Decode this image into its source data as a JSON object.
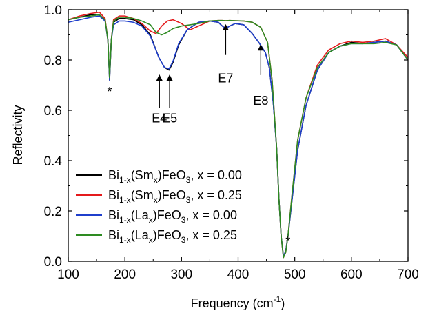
{
  "chart_data": {
    "type": "line",
    "title": "",
    "xlabel": "Frequency (cm⁻¹)",
    "xlabel_parts": {
      "text": "Frequency (cm",
      "sup": "-1",
      "close": ")"
    },
    "ylabel": "Reflectivity",
    "xlim": [
      100,
      700
    ],
    "ylim": [
      0.0,
      1.0
    ],
    "xticks": [
      100,
      200,
      300,
      400,
      500,
      600,
      700
    ],
    "xtick_labels": [
      "100",
      "200",
      "300",
      "400",
      "500",
      "600",
      "700"
    ],
    "yticks": [
      0.0,
      0.2,
      0.4,
      0.6,
      0.8,
      1.0
    ],
    "ytick_labels": [
      "0.0",
      "0.2",
      "0.4",
      "0.6",
      "0.8",
      "1.0"
    ],
    "grid": false,
    "legend_position": "bottom-left",
    "series": [
      {
        "name": "Bi1-x(Sm x)FeO3, x = 0.00",
        "legend": {
          "a": "Bi",
          "a_sub": "1-x",
          "b": "(Sm",
          "b_sub": "x",
          "c": ")FeO",
          "c_sub": "3",
          "d": ", x = 0.00"
        },
        "color": "#000000",
        "x": [
          100,
          120,
          140,
          155,
          165,
          170,
          173,
          176,
          180,
          190,
          200,
          215,
          230,
          245,
          260,
          270,
          278,
          285,
          295,
          310,
          330,
          350,
          365,
          372,
          378,
          385,
          395,
          410,
          425,
          438,
          448,
          455,
          462,
          468,
          472,
          476,
          480,
          484,
          488,
          495,
          505,
          520,
          540,
          560,
          580,
          600,
          620,
          640,
          660,
          680,
          700
        ],
        "y": [
          0.96,
          0.97,
          0.98,
          0.98,
          0.96,
          0.88,
          0.72,
          0.88,
          0.95,
          0.965,
          0.965,
          0.96,
          0.94,
          0.9,
          0.81,
          0.77,
          0.76,
          0.79,
          0.86,
          0.92,
          0.95,
          0.955,
          0.95,
          0.935,
          0.925,
          0.935,
          0.945,
          0.94,
          0.905,
          0.865,
          0.83,
          0.77,
          0.63,
          0.45,
          0.25,
          0.1,
          0.02,
          0.04,
          0.1,
          0.24,
          0.44,
          0.62,
          0.76,
          0.83,
          0.855,
          0.87,
          0.865,
          0.87,
          0.875,
          0.86,
          0.8
        ]
      },
      {
        "name": "Bi1-x(Sm x)FeO3, x = 0.25",
        "legend": {
          "a": "Bi",
          "a_sub": "1-x",
          "b": "(Sm",
          "b_sub": "x",
          "c": ")FeO",
          "c_sub": "3",
          "d": ", x = 0.25"
        },
        "color": "#e41a1c",
        "x": [
          100,
          120,
          140,
          155,
          165,
          170,
          173,
          176,
          180,
          190,
          200,
          215,
          230,
          245,
          255,
          265,
          275,
          285,
          300,
          315,
          330,
          350,
          365,
          372,
          378,
          385,
          395,
          410,
          425,
          440,
          452,
          460,
          468,
          472,
          476,
          480,
          484,
          488,
          495,
          505,
          520,
          540,
          560,
          580,
          600,
          620,
          640,
          660,
          680,
          700
        ],
        "y": [
          0.96,
          0.975,
          0.985,
          0.99,
          0.965,
          0.88,
          0.73,
          0.88,
          0.96,
          0.975,
          0.975,
          0.965,
          0.945,
          0.915,
          0.905,
          0.935,
          0.955,
          0.96,
          0.945,
          0.92,
          0.935,
          0.955,
          0.957,
          0.957,
          0.956,
          0.957,
          0.956,
          0.955,
          0.95,
          0.93,
          0.87,
          0.72,
          0.45,
          0.25,
          0.1,
          0.015,
          0.035,
          0.1,
          0.26,
          0.48,
          0.65,
          0.78,
          0.84,
          0.865,
          0.875,
          0.87,
          0.875,
          0.885,
          0.86,
          0.81
        ]
      },
      {
        "name": "Bi1-x(La x)FeO3, x = 0.00",
        "legend": {
          "a": "Bi",
          "a_sub": "1-x",
          "b": "(La",
          "b_sub": "x",
          "c": ")FeO",
          "c_sub": "3",
          "d": ", x = 0.00"
        },
        "color": "#1f3fcc",
        "x": [
          100,
          120,
          140,
          155,
          165,
          170,
          173,
          176,
          180,
          190,
          200,
          215,
          230,
          245,
          260,
          270,
          278,
          285,
          295,
          310,
          330,
          350,
          365,
          372,
          378,
          385,
          395,
          410,
          425,
          438,
          448,
          455,
          462,
          468,
          472,
          476,
          480,
          484,
          488,
          495,
          505,
          520,
          540,
          560,
          580,
          600,
          620,
          640,
          660,
          680,
          700
        ],
        "y": [
          0.95,
          0.96,
          0.97,
          0.975,
          0.955,
          0.88,
          0.72,
          0.88,
          0.94,
          0.955,
          0.955,
          0.95,
          0.935,
          0.895,
          0.81,
          0.77,
          0.765,
          0.795,
          0.865,
          0.92,
          0.95,
          0.955,
          0.95,
          0.935,
          0.925,
          0.935,
          0.945,
          0.94,
          0.905,
          0.865,
          0.83,
          0.77,
          0.63,
          0.45,
          0.25,
          0.1,
          0.02,
          0.04,
          0.1,
          0.24,
          0.44,
          0.62,
          0.76,
          0.83,
          0.855,
          0.865,
          0.865,
          0.87,
          0.875,
          0.86,
          0.8
        ]
      },
      {
        "name": "Bi1-x(La x)FeO3, x = 0.25",
        "legend": {
          "a": "Bi",
          "a_sub": "1-x",
          "b": "(La",
          "b_sub": "x",
          "c": ")FeO",
          "c_sub": "3",
          "d": ", x = 0.25"
        },
        "color": "#2e8b22",
        "x": [
          100,
          120,
          140,
          155,
          165,
          170,
          173,
          176,
          180,
          190,
          200,
          215,
          230,
          245,
          255,
          265,
          275,
          285,
          300,
          315,
          330,
          350,
          365,
          372,
          378,
          385,
          395,
          410,
          425,
          440,
          452,
          460,
          468,
          472,
          476,
          480,
          484,
          488,
          495,
          505,
          520,
          540,
          560,
          580,
          600,
          620,
          640,
          660,
          680,
          700
        ],
        "y": [
          0.96,
          0.97,
          0.975,
          0.98,
          0.96,
          0.88,
          0.73,
          0.88,
          0.955,
          0.97,
          0.97,
          0.965,
          0.955,
          0.94,
          0.91,
          0.9,
          0.91,
          0.925,
          0.935,
          0.94,
          0.945,
          0.955,
          0.957,
          0.957,
          0.956,
          0.957,
          0.956,
          0.955,
          0.95,
          0.93,
          0.87,
          0.72,
          0.45,
          0.25,
          0.1,
          0.015,
          0.035,
          0.1,
          0.26,
          0.48,
          0.65,
          0.77,
          0.83,
          0.855,
          0.865,
          0.865,
          0.865,
          0.87,
          0.86,
          0.8
        ]
      }
    ],
    "annotations": [
      {
        "text": "*",
        "x": 173,
        "y": 0.68,
        "kind": "star"
      },
      {
        "text": "*",
        "x": 488,
        "y": 0.085,
        "kind": "star"
      },
      {
        "text": "E4",
        "x": 261,
        "y_tip": 0.74,
        "y_tail": 0.61,
        "y_label": 0.59,
        "kind": "arrow"
      },
      {
        "text": "E5",
        "x": 279,
        "y_tip": 0.74,
        "y_tail": 0.61,
        "y_label": 0.59,
        "kind": "arrow"
      },
      {
        "text": "E7",
        "x": 378,
        "y_tip": 0.94,
        "y_tail": 0.82,
        "y_label": 0.75,
        "kind": "arrow"
      },
      {
        "text": "E8",
        "x": 440,
        "y_tip": 0.86,
        "y_tail": 0.74,
        "y_label": 0.66,
        "kind": "arrow"
      }
    ]
  }
}
